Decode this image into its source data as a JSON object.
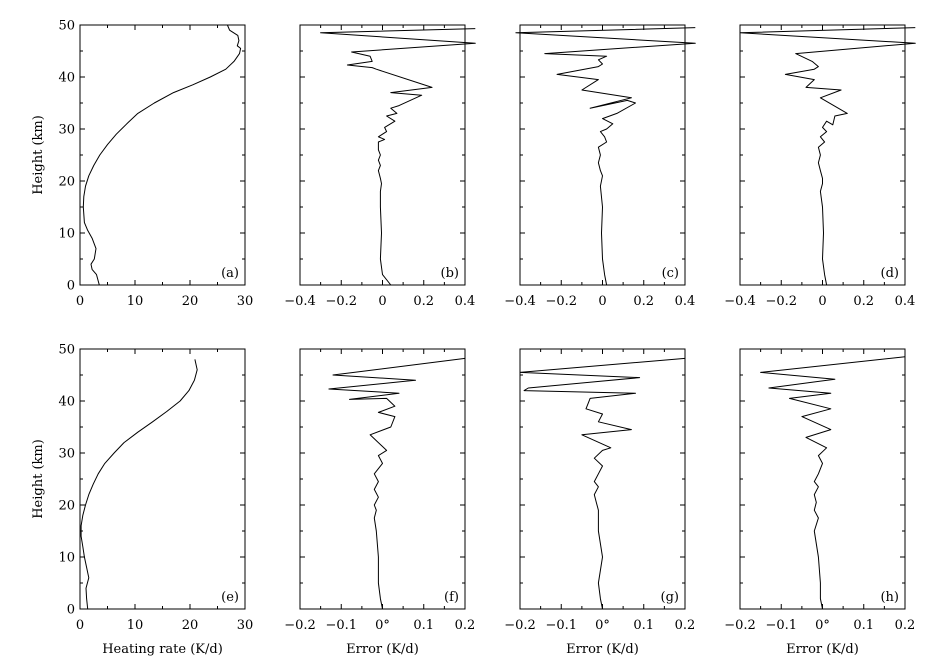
{
  "chart_data": [
    {
      "type": "line",
      "panel": "a",
      "label": "(a)",
      "row": 0,
      "col": 0,
      "xlim": [
        0,
        30
      ],
      "ylim": [
        0,
        50
      ],
      "xticks": [
        "0",
        "10",
        "20",
        "30"
      ],
      "yticks": [
        "0",
        "10",
        "20",
        "30",
        "40",
        "50"
      ],
      "xlabel": "",
      "ylabel": "Height (km)",
      "x": [
        3.5,
        3.0,
        2.2,
        2.0,
        2.6,
        2.9,
        2.2,
        1.4,
        0.8,
        0.6,
        0.7,
        1.0,
        1.6,
        2.5,
        3.6,
        5.0,
        6.6,
        8.5,
        10.5,
        13.5,
        17.0,
        20.5,
        23.7,
        26.5,
        28.0,
        29.0,
        29.2,
        28.6,
        28.9,
        28.7,
        27.2,
        26.8
      ],
      "y": [
        0,
        2,
        3,
        4,
        5,
        7,
        9,
        10.5,
        12,
        15,
        17,
        19,
        21,
        23,
        25,
        27,
        29,
        31,
        33,
        35,
        37,
        38.5,
        40,
        41.5,
        43,
        44.5,
        45.5,
        46,
        47,
        48,
        49,
        50
      ]
    },
    {
      "type": "line",
      "panel": "b",
      "label": "(b)",
      "row": 0,
      "col": 1,
      "xlim": [
        -0.4,
        0.4
      ],
      "ylim": [
        0,
        50
      ],
      "xticks": [
        "−0.4",
        "−0.2",
        "0",
        "0.2",
        "0.4"
      ],
      "yticks": [],
      "xlabel": "",
      "ylabel": "",
      "x": [
        0.04,
        0.0,
        -0.01,
        -0.005,
        -0.01,
        -0.01,
        -0.005,
        -0.01,
        -0.02,
        -0.01,
        -0.02,
        -0.01,
        -0.02,
        -0.02,
        0.01,
        -0.02,
        0.02,
        0.01,
        0.06,
        0.02,
        0.07,
        0.04,
        0.08,
        0.19,
        0.04,
        0.24,
        -0.03,
        -0.05,
        -0.17,
        -0.05,
        -0.06,
        -0.15,
        0.45,
        -0.3,
        0.45
      ],
      "y": [
        0,
        2,
        5,
        10,
        15,
        18,
        19.5,
        20.5,
        22,
        23,
        24,
        25,
        26,
        27.5,
        28,
        28.5,
        29.5,
        30.3,
        31.5,
        32.5,
        33,
        34,
        34.5,
        36.5,
        37,
        38,
        41.5,
        41.8,
        42.3,
        43,
        44,
        44.8,
        46.5,
        48.5,
        49.3
      ]
    },
    {
      "type": "line",
      "panel": "c",
      "label": "(c)",
      "row": 0,
      "col": 2,
      "xlim": [
        -0.4,
        0.4
      ],
      "ylim": [
        0,
        50
      ],
      "xticks": [
        "−0.4",
        "−0.2",
        "0",
        "0.2",
        "0.4"
      ],
      "yticks": [],
      "xlabel": "",
      "ylabel": "",
      "x": [
        0.02,
        0.01,
        0.0,
        -0.005,
        0.0,
        -0.01,
        0.0,
        -0.01,
        -0.02,
        -0.01,
        -0.02,
        0.02,
        0.01,
        -0.01,
        0.02,
        0.05,
        0.0,
        0.07,
        0.16,
        0.12,
        -0.06,
        0.14,
        -0.1,
        -0.02,
        -0.22,
        -0.02,
        0.0,
        -0.02,
        0.02,
        -0.28,
        0.45,
        -0.42,
        0.45
      ],
      "y": [
        0,
        2,
        5,
        10,
        15,
        19,
        21,
        22,
        23.5,
        25,
        26.5,
        27.5,
        28.5,
        29.5,
        30,
        31,
        32,
        33,
        35,
        35.5,
        34,
        36,
        37.5,
        39.5,
        40.5,
        42,
        42.5,
        43.3,
        44,
        44.5,
        46.5,
        48.5,
        49.5
      ]
    },
    {
      "type": "line",
      "panel": "d",
      "label": "(d)",
      "row": 0,
      "col": 3,
      "xlim": [
        -0.4,
        0.4
      ],
      "ylim": [
        0,
        50
      ],
      "xticks": [
        "−0.4",
        "−0.2",
        "0",
        "0.2",
        "0.4"
      ],
      "yticks": [],
      "xlabel": "",
      "ylabel": "",
      "x": [
        0.02,
        0.01,
        0.0,
        0.005,
        0.0,
        -0.01,
        0.0,
        0.0,
        -0.01,
        -0.02,
        -0.01,
        -0.02,
        0.01,
        -0.01,
        0.02,
        0.0,
        0.02,
        0.05,
        0.06,
        0.12,
        -0.01,
        0.09,
        -0.08,
        -0.04,
        -0.18,
        -0.04,
        -0.02,
        -0.05,
        -0.13,
        0.45,
        -0.4,
        0.45
      ],
      "y": [
        0,
        2,
        5,
        10,
        15,
        18,
        19.5,
        20.5,
        22,
        23.5,
        25,
        26.5,
        27.5,
        28.5,
        29.5,
        30.3,
        31.5,
        30.8,
        32.5,
        33,
        36,
        37.5,
        38,
        39.5,
        40.5,
        41.5,
        42,
        43,
        44.5,
        46.5,
        48.5,
        49.5
      ]
    },
    {
      "type": "line",
      "panel": "e",
      "label": "(e)",
      "row": 1,
      "col": 0,
      "xlim": [
        0,
        30
      ],
      "ylim": [
        0,
        50
      ],
      "xticks": [
        "0",
        "10",
        "20",
        "30"
      ],
      "yticks": [
        "0",
        "10",
        "20",
        "30",
        "40",
        "50"
      ],
      "xlabel": "Heating rate (K/d)",
      "ylabel": "Height (km)",
      "x": [
        1.4,
        1.2,
        1.1,
        1.6,
        1.2,
        0.8,
        0.5,
        0.2,
        0.2,
        0.5,
        1.0,
        1.6,
        2.4,
        3.3,
        4.5,
        6.2,
        8.0,
        10.5,
        13.2,
        15.8,
        18.2,
        19.8,
        20.8,
        21.3,
        20.9
      ],
      "y": [
        0,
        2,
        4,
        6,
        8,
        10,
        12,
        14,
        16,
        18,
        20,
        22,
        24,
        26,
        28,
        30,
        32,
        34,
        36,
        38,
        40,
        42,
        44,
        46,
        48
      ]
    },
    {
      "type": "line",
      "panel": "f",
      "label": "(f)",
      "row": 1,
      "col": 1,
      "xlim": [
        -0.2,
        0.2
      ],
      "ylim": [
        0,
        50
      ],
      "xticks": [
        "−0.2",
        "−0.1",
        "0°",
        "0.1",
        "0.2"
      ],
      "yticks": [],
      "xlabel": "Error (K/d)",
      "ylabel": "",
      "x": [
        0.0,
        -0.005,
        -0.01,
        -0.01,
        -0.015,
        -0.02,
        -0.015,
        -0.02,
        -0.01,
        -0.02,
        -0.01,
        -0.02,
        0.0,
        -0.01,
        0.01,
        -0.03,
        0.02,
        0.03,
        -0.01,
        0.03,
        0.01,
        -0.08,
        0.04,
        -0.13,
        0.08,
        -0.12,
        0.2
      ],
      "y": [
        0,
        2,
        5,
        10,
        15,
        17.5,
        19,
        20,
        21.5,
        23,
        24.5,
        26,
        28,
        29.5,
        30.5,
        33.5,
        35,
        37,
        37.8,
        39,
        40.5,
        40.3,
        41.5,
        42.3,
        44,
        45,
        48.2
      ]
    },
    {
      "type": "line",
      "panel": "g",
      "label": "(g)",
      "row": 1,
      "col": 2,
      "xlim": [
        -0.2,
        0.2
      ],
      "ylim": [
        0,
        50
      ],
      "xticks": [
        "−0.2",
        "−0.1",
        "0°",
        "0.1",
        "0.2"
      ],
      "yticks": [],
      "xlabel": "Error (K/d)",
      "ylabel": "",
      "x": [
        0.0,
        -0.005,
        -0.01,
        0.0,
        -0.01,
        -0.01,
        -0.01,
        -0.015,
        -0.02,
        -0.01,
        -0.02,
        -0.01,
        0.0,
        -0.02,
        0.0,
        0.02,
        -0.05,
        0.07,
        -0.01,
        0.0,
        -0.04,
        -0.03,
        0.08,
        -0.19,
        -0.18,
        0.09,
        -0.2,
        0.2
      ],
      "y": [
        0,
        2,
        5,
        10,
        15,
        17.5,
        19,
        20.5,
        22,
        23.5,
        24.5,
        26,
        27.5,
        29,
        30.5,
        31,
        33.5,
        34.5,
        36,
        37.5,
        38.5,
        40.5,
        41.5,
        42,
        42.5,
        44.5,
        45.5,
        48.2
      ]
    },
    {
      "type": "line",
      "panel": "h",
      "label": "(h)",
      "row": 1,
      "col": 3,
      "xlim": [
        -0.2,
        0.2
      ],
      "ylim": [
        0,
        50
      ],
      "xticks": [
        "−0.2",
        "−0.1",
        "0°",
        "0.1",
        "0.2"
      ],
      "yticks": [],
      "xlabel": "Error (K/d)",
      "ylabel": "",
      "x": [
        0.0,
        -0.005,
        -0.005,
        -0.01,
        -0.02,
        -0.01,
        -0.02,
        -0.015,
        -0.02,
        -0.01,
        -0.02,
        -0.01,
        0.0,
        -0.01,
        0.01,
        -0.04,
        0.02,
        -0.05,
        0.02,
        -0.08,
        0.02,
        -0.13,
        0.03,
        -0.15,
        0.2
      ],
      "y": [
        0,
        2,
        5,
        10,
        15,
        17.5,
        19,
        20.5,
        22,
        23.5,
        24.5,
        26,
        28,
        29.5,
        31,
        33,
        34.5,
        37,
        38.5,
        40.5,
        41.5,
        42.5,
        44.2,
        45.5,
        48.5
      ]
    }
  ]
}
